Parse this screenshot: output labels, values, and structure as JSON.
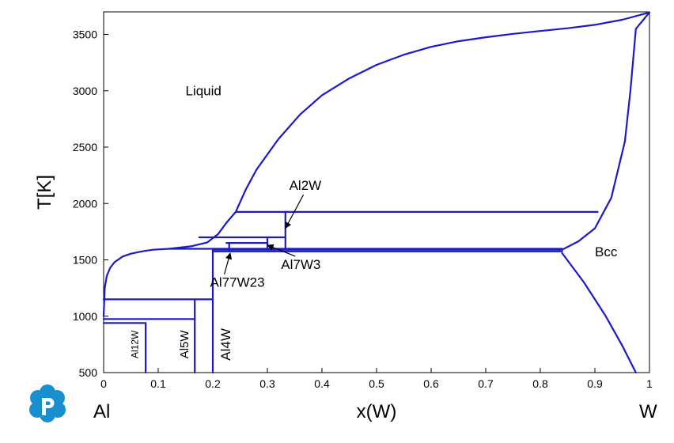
{
  "chart_data": {
    "type": "line",
    "title": "",
    "xlabel": "x(W)",
    "ylabel": "T[K]",
    "xlim": [
      0,
      1
    ],
    "ylim": [
      500,
      3700
    ],
    "x_ticks": [
      0,
      0.1,
      0.2,
      0.3,
      0.4,
      0.5,
      0.6,
      0.7,
      0.8,
      0.9,
      1
    ],
    "x_tick_labels": [
      "0",
      "0.1",
      "0.2",
      "0.3",
      "0.4",
      "0.5",
      "0.6",
      "0.7",
      "0.8",
      "0.9",
      "1"
    ],
    "y_ticks": [
      500,
      1000,
      1500,
      2000,
      2500,
      3000,
      3500
    ],
    "y_tick_labels": [
      "500",
      "1000",
      "1500",
      "2000",
      "2500",
      "3000",
      "3500"
    ],
    "axis_end_labels": {
      "left": "Al",
      "right": "W"
    },
    "grid": false,
    "line_color": "#1a1acc",
    "series": [
      {
        "x": [
          0.0,
          0.002,
          0.006,
          0.012,
          0.02,
          0.035,
          0.05,
          0.07,
          0.09,
          0.12
        ],
        "y": [
          1000,
          1250,
          1360,
          1430,
          1480,
          1530,
          1555,
          1575,
          1590,
          1598
        ]
      },
      {
        "x": [
          0.12,
          0.16,
          0.19,
          0.21,
          0.225,
          0.242
        ],
        "y": [
          1598,
          1620,
          1655,
          1730,
          1830,
          1925
        ]
      },
      {
        "x": [
          0.242,
          0.26,
          0.28,
          0.32,
          0.36,
          0.4,
          0.45,
          0.5,
          0.55,
          0.6,
          0.65,
          0.7,
          0.75,
          0.8,
          0.85,
          0.9,
          0.95,
          1.0
        ],
        "y": [
          1925,
          2120,
          2300,
          2570,
          2790,
          2960,
          3110,
          3230,
          3320,
          3390,
          3440,
          3475,
          3505,
          3530,
          3555,
          3585,
          3630,
          3695
        ]
      },
      {
        "x": [
          0.84,
          0.87,
          0.9,
          0.93,
          0.955,
          0.965,
          0.975,
          1.0
        ],
        "y": [
          1590,
          1665,
          1780,
          2050,
          2550,
          3000,
          3550,
          3695
        ]
      },
      {
        "x": [
          0.84,
          0.88,
          0.92,
          0.95,
          0.975
        ],
        "y": [
          1560,
          1300,
          1000,
          740,
          500
        ]
      },
      {
        "x": [
          0.0,
          0.2
        ],
        "y": [
          1150,
          1150
        ]
      },
      {
        "x": [
          0.0,
          0.167
        ],
        "y": [
          975,
          975
        ]
      },
      {
        "x": [
          0.0,
          0.077
        ],
        "y": [
          940,
          940
        ]
      },
      {
        "x": [
          0.2,
          0.84
        ],
        "y": [
          1575,
          1575
        ]
      },
      {
        "x": [
          0.2,
          0.84
        ],
        "y": [
          1590,
          1590
        ]
      },
      {
        "x": [
          0.12,
          0.84
        ],
        "y": [
          1598,
          1598
        ]
      },
      {
        "x": [
          0.225,
          0.3
        ],
        "y": [
          1650,
          1650
        ]
      },
      {
        "x": [
          0.175,
          0.333
        ],
        "y": [
          1700,
          1700
        ]
      },
      {
        "x": [
          0.242,
          0.905
        ],
        "y": [
          1925,
          1925
        ]
      },
      {
        "x": [
          0.077,
          0.077
        ],
        "y": [
          500,
          940
        ]
      },
      {
        "x": [
          0.167,
          0.167
        ],
        "y": [
          500,
          1150
        ]
      },
      {
        "x": [
          0.2,
          0.2
        ],
        "y": [
          500,
          1590
        ]
      },
      {
        "x": [
          0.23,
          0.23
        ],
        "y": [
          1575,
          1650
        ]
      },
      {
        "x": [
          0.3,
          0.3
        ],
        "y": [
          1590,
          1700
        ]
      },
      {
        "x": [
          0.333,
          0.333
        ],
        "y": [
          1598,
          1925
        ]
      }
    ],
    "region_labels": [
      {
        "text": "Liquid",
        "x": 0.15,
        "y": 2960
      },
      {
        "text": "Bcc",
        "x": 0.9,
        "y": 1530
      }
    ],
    "annotations": [
      {
        "text": "Al2W",
        "x": 0.34,
        "y": 2120,
        "arrow_x": 0.333,
        "arrow_y": 1780
      },
      {
        "text": "Al7W3",
        "x": 0.325,
        "y": 1420,
        "arrow_x": 0.3,
        "arrow_y": 1630
      },
      {
        "text": "Al77W23",
        "x": 0.195,
        "y": 1260,
        "arrow_x": 0.232,
        "arrow_y": 1560
      }
    ],
    "phase_labels": [
      {
        "text": "Al12W",
        "x": 0.063,
        "y": 750
      },
      {
        "text": "Al5W",
        "x": 0.155,
        "y": 750
      },
      {
        "text": "Al4W",
        "x": 0.232,
        "y": 750
      }
    ]
  }
}
